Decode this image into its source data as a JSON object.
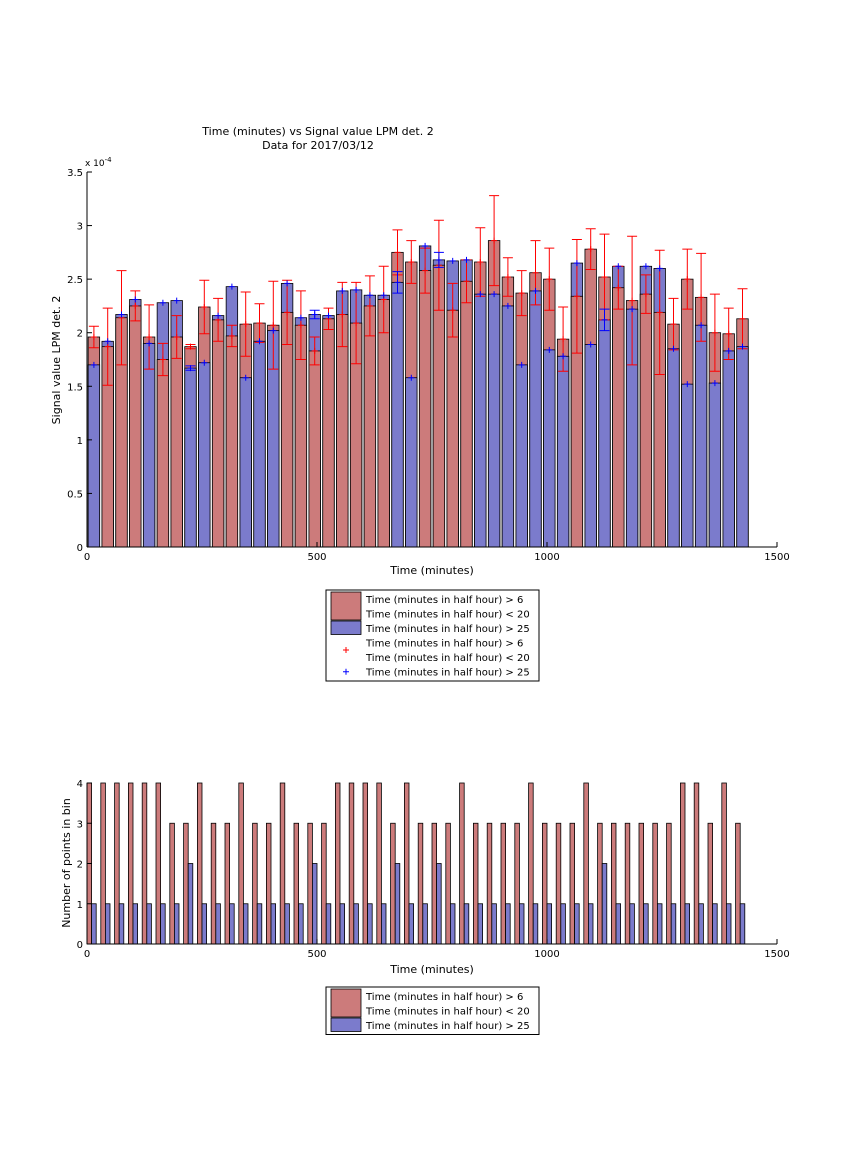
{
  "chart_data": [
    {
      "type": "bar",
      "title": "Time (minutes) vs Signal value LPM det. 2",
      "subtitle": "Data for 2017/03/12",
      "xlabel": "Time (minutes)",
      "ylabel": "Signal value LPM det. 2",
      "y_exponent_label": "x 10",
      "y_exponent_power": "-4",
      "xlim": [
        0,
        1500
      ],
      "ylim": [
        0,
        3.5
      ],
      "xticks": [
        "0",
        "500",
        "1000",
        "1500"
      ],
      "yticks": [
        "0",
        "0.5",
        "1",
        "1.5",
        "2",
        "2.5",
        "3",
        "3.5"
      ],
      "grid": false,
      "legend_position": "below",
      "legend": [
        "Time (minutes in half hour) > 6",
        "Time (minutes in half hour) < 20",
        "Time (minutes in half hour) > 25",
        "Time (minutes in half hour) > 6",
        "Time (minutes in half hour) < 20",
        "Time (minutes in half hour) > 25"
      ],
      "x": [
        15,
        45,
        75,
        105,
        135,
        165,
        195,
        225,
        255,
        285,
        315,
        345,
        375,
        405,
        435,
        465,
        495,
        525,
        555,
        585,
        615,
        645,
        675,
        705,
        735,
        765,
        795,
        825,
        855,
        885,
        915,
        945,
        975,
        1005,
        1035,
        1065,
        1095,
        1125,
        1155,
        1185,
        1215,
        1245,
        1275,
        1305,
        1335,
        1365,
        1395,
        1425
      ],
      "series": [
        {
          "name": "Time (minutes in half hour) > 6\nTime (minutes in half hour) < 20",
          "color": "#cc7b7b",
          "values": [
            1.96,
            1.87,
            2.14,
            2.25,
            1.96,
            1.75,
            1.96,
            1.87,
            2.24,
            2.12,
            1.97,
            2.08,
            2.09,
            2.07,
            2.19,
            2.07,
            1.83,
            2.13,
            2.17,
            2.09,
            2.25,
            2.31,
            2.75,
            2.66,
            2.58,
            2.63,
            2.21,
            2.48,
            2.66,
            2.86,
            2.52,
            2.37,
            2.56,
            2.5,
            1.94,
            2.34,
            2.78,
            2.52,
            2.42,
            2.3,
            2.36,
            2.19,
            2.08,
            2.5,
            2.33,
            2.0,
            1.99,
            2.13
          ],
          "error": [
            0.1,
            0.36,
            0.44,
            0.14,
            0.3,
            0.15,
            0.2,
            0.02,
            0.25,
            0.2,
            0.1,
            0.3,
            0.18,
            0.41,
            0.3,
            0.32,
            0.13,
            0.1,
            0.3,
            0.38,
            0.28,
            0.31,
            0.21,
            0.2,
            0.21,
            0.42,
            0.25,
            0.2,
            0.32,
            0.42,
            0.18,
            0.21,
            0.3,
            0.29,
            0.3,
            0.53,
            0.19,
            0.4,
            0.2,
            0.6,
            0.18,
            0.58,
            0.24,
            0.28,
            0.41,
            0.36,
            0.24,
            0.28
          ]
        },
        {
          "name": "Time (minutes in half hour) > 25",
          "color": "#7b7bcc",
          "values": [
            1.7,
            1.92,
            2.17,
            2.31,
            1.9,
            2.28,
            2.3,
            1.67,
            1.72,
            2.16,
            2.43,
            1.58,
            1.92,
            2.02,
            2.46,
            2.14,
            2.17,
            2.16,
            2.39,
            2.4,
            2.35,
            2.35,
            2.47,
            1.58,
            2.81,
            2.68,
            2.67,
            2.68,
            2.36,
            2.36,
            2.25,
            1.7,
            2.39,
            1.84,
            1.78,
            2.65,
            1.89,
            2.12,
            2.62,
            2.22,
            2.62,
            2.6,
            1.85,
            1.52,
            2.07,
            1.53,
            1.83,
            1.87
          ],
          "error": [
            0,
            0,
            0,
            0,
            0,
            0,
            0,
            0.02,
            0,
            0,
            0,
            0,
            0,
            0,
            0,
            0,
            0.04,
            0,
            0,
            0,
            0,
            0,
            0.1,
            0,
            0,
            0.07,
            0,
            0,
            0,
            0,
            0,
            0,
            0,
            0,
            0,
            0,
            0,
            0.1,
            0,
            0,
            0,
            0,
            0,
            0,
            0,
            0,
            0,
            0
          ]
        }
      ]
    },
    {
      "type": "bar",
      "xlabel": "Time (minutes)",
      "ylabel": "Number of points in bin",
      "xlim": [
        0,
        1500
      ],
      "ylim": [
        0,
        4
      ],
      "xticks": [
        "0",
        "500",
        "1000",
        "1500"
      ],
      "yticks": [
        "0",
        "1",
        "2",
        "3",
        "4"
      ],
      "grid": false,
      "legend_position": "below",
      "legend": [
        "Time (minutes in half hour) > 6",
        "Time (minutes in half hour) < 20",
        "Time (minutes in half hour) > 25"
      ],
      "series": [
        {
          "name": "Time (minutes in half hour) > 6\nTime (minutes in half hour) < 20",
          "color": "#cc7b7b",
          "x": [
            5,
            35,
            65,
            95,
            125,
            155,
            185,
            215,
            245,
            275,
            305,
            335,
            365,
            395,
            425,
            455,
            485,
            515,
            545,
            575,
            605,
            635,
            665,
            695,
            725,
            755,
            785,
            815,
            845,
            875,
            905,
            935,
            965,
            995,
            1025,
            1055,
            1085,
            1115,
            1145,
            1175,
            1205,
            1235,
            1265,
            1295,
            1325,
            1355,
            1385,
            1415
          ],
          "values": [
            4,
            4,
            4,
            4,
            4,
            4,
            3,
            3,
            4,
            3,
            3,
            4,
            3,
            3,
            4,
            3,
            3,
            3,
            4,
            4,
            4,
            4,
            3,
            4,
            3,
            3,
            3,
            4,
            3,
            3,
            3,
            3,
            4,
            3,
            3,
            3,
            4,
            3,
            3,
            3,
            3,
            3,
            3,
            4,
            4,
            3,
            4,
            3
          ]
        },
        {
          "name": "Time (minutes in half hour) > 25",
          "color": "#7b7bcc",
          "x": [
            15,
            45,
            75,
            105,
            135,
            165,
            195,
            225,
            255,
            285,
            315,
            345,
            375,
            405,
            435,
            465,
            495,
            525,
            555,
            585,
            615,
            645,
            675,
            705,
            735,
            765,
            795,
            825,
            855,
            885,
            915,
            945,
            975,
            1005,
            1035,
            1065,
            1095,
            1125,
            1155,
            1185,
            1215,
            1245,
            1275,
            1305,
            1335,
            1365,
            1395,
            1425
          ],
          "values": [
            1,
            1,
            1,
            1,
            1,
            1,
            1,
            2,
            1,
            1,
            1,
            1,
            1,
            1,
            1,
            1,
            2,
            1,
            1,
            1,
            1,
            1,
            2,
            1,
            1,
            2,
            1,
            1,
            1,
            1,
            1,
            1,
            1,
            1,
            1,
            1,
            1,
            2,
            1,
            1,
            1,
            1,
            1,
            1,
            1,
            1,
            1,
            1
          ]
        }
      ]
    }
  ]
}
